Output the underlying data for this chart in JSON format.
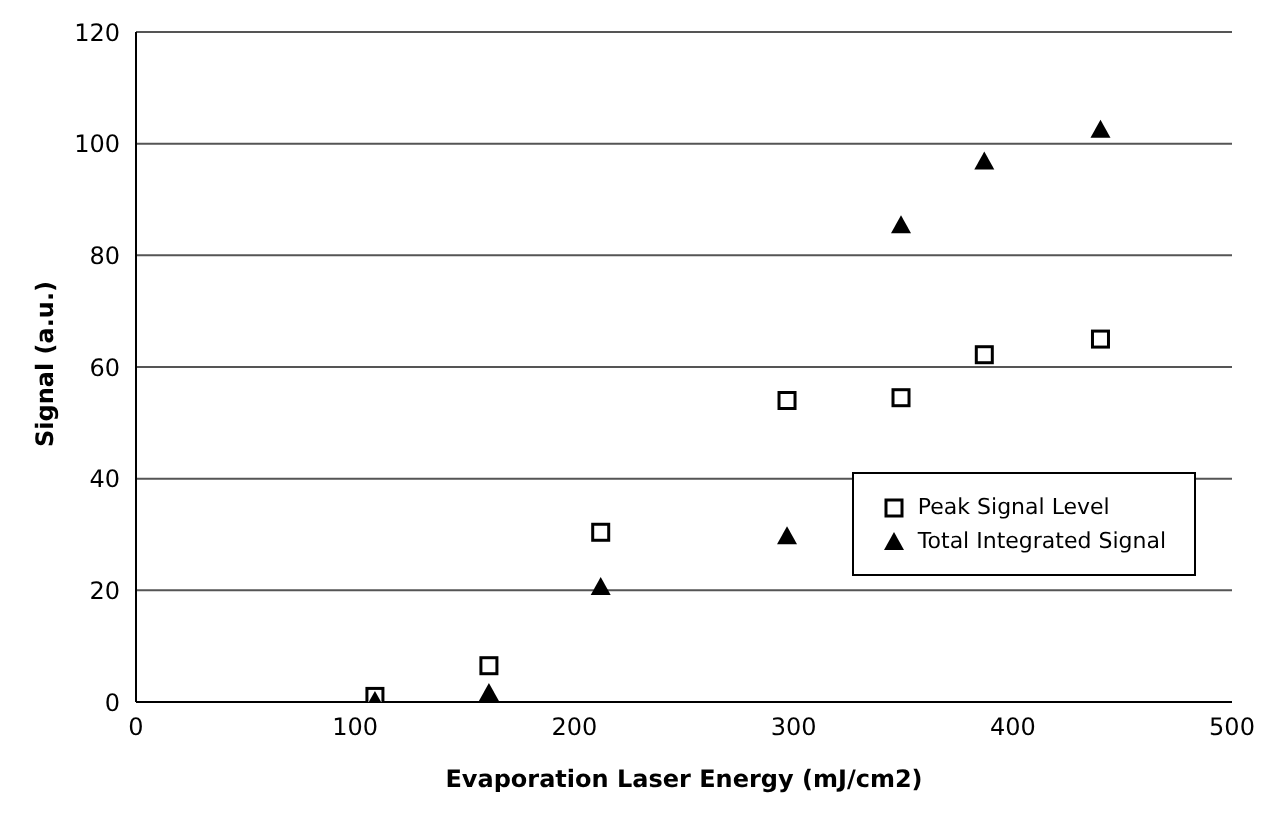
{
  "chart_data": {
    "type": "scatter",
    "xlabel": "Evaporation Laser Energy (mJ/cm2)",
    "ylabel": "Signal (a.u.)",
    "x": [
      109,
      161,
      212,
      297,
      349,
      387,
      440
    ],
    "series": [
      {
        "name": "Peak Signal Level",
        "color": "#000000",
        "marker": "square",
        "values": [
          1,
          6.5,
          30.4,
          54,
          54.5,
          62.2,
          65
        ]
      },
      {
        "name": "Total Integrated Signal",
        "color": "#000000",
        "marker": "triangle",
        "values": [
          0.2,
          1.6,
          20.6,
          29.7,
          85.4,
          96.8,
          102.5
        ]
      }
    ],
    "xlim": [
      0,
      500
    ],
    "xticks": [
      0,
      100,
      200,
      300,
      400,
      500
    ],
    "ylim": [
      0,
      120
    ],
    "yticks": [
      0,
      20,
      40,
      60,
      80,
      100,
      120
    ],
    "grid": "y",
    "legend": "bottom right"
  }
}
